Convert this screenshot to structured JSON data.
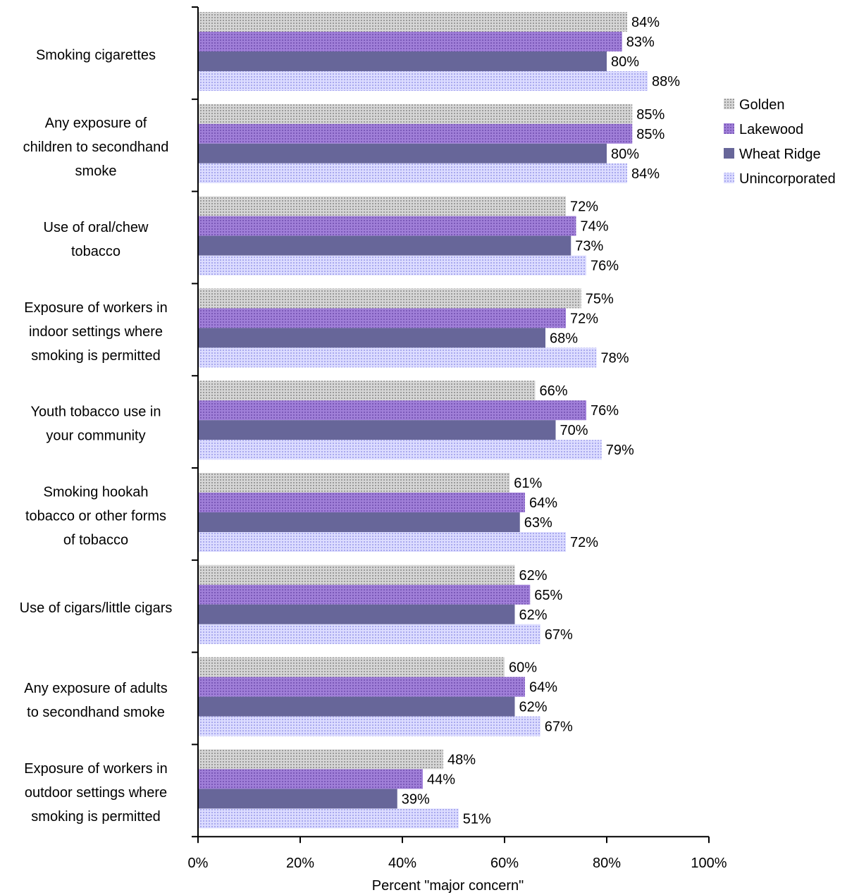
{
  "chart_data": {
    "type": "bar",
    "orientation": "horizontal",
    "title": "",
    "xlabel": "Percent \"major concern\"",
    "ylabel": "",
    "xlim": [
      0,
      100
    ],
    "x_ticks": [
      "0%",
      "20%",
      "40%",
      "60%",
      "80%",
      "100%"
    ],
    "grid": false,
    "legend_position": "right",
    "categories": [
      "Smoking cigarettes",
      "Any exposure of children to secondhand smoke",
      "Use of oral/chew tobacco",
      "Exposure of workers in indoor settings where smoking is permitted",
      "Youth tobacco use in your community",
      "Smoking hookah tobacco or other forms of tobacco",
      "Use of cigars/little cigars",
      "Any exposure of adults to secondhand smoke",
      "Exposure of workers in outdoor settings where smoking is permitted"
    ],
    "category_lines": [
      [
        "Smoking cigarettes"
      ],
      [
        "Any exposure of",
        "children to secondhand",
        "smoke"
      ],
      [
        "Use of oral/chew",
        "tobacco"
      ],
      [
        "Exposure of workers in",
        "indoor settings where",
        "smoking is permitted"
      ],
      [
        "Youth tobacco use in",
        "your community"
      ],
      [
        "Smoking hookah",
        "tobacco or other forms",
        "of tobacco"
      ],
      [
        "Use of cigars/little cigars"
      ],
      [
        "Any exposure of adults",
        "to secondhand smoke"
      ],
      [
        "Exposure of workers in",
        "outdoor settings where",
        "smoking is permitted"
      ]
    ],
    "series": [
      {
        "name": "Golden",
        "color": "#c8c8c8",
        "pattern": "dots-grey",
        "values": [
          84,
          85,
          72,
          75,
          66,
          61,
          62,
          60,
          48
        ],
        "labels": [
          "84%",
          "85%",
          "72%",
          "75%",
          "66%",
          "61%",
          "62%",
          "60%",
          "48%"
        ]
      },
      {
        "name": "Lakewood",
        "color": "#9575cd",
        "pattern": "dots-purple",
        "values": [
          83,
          85,
          74,
          72,
          76,
          64,
          65,
          64,
          44
        ],
        "labels": [
          "83%",
          "85%",
          "74%",
          "72%",
          "76%",
          "64%",
          "65%",
          "64%",
          "44%"
        ]
      },
      {
        "name": "Wheat Ridge",
        "color": "#676699",
        "pattern": "solid",
        "values": [
          80,
          80,
          73,
          68,
          70,
          63,
          62,
          62,
          39
        ],
        "labels": [
          "80%",
          "80%",
          "73%",
          "68%",
          "70%",
          "63%",
          "62%",
          "62%",
          "39%"
        ]
      },
      {
        "name": "Unincorporated",
        "color": "#ccccff",
        "pattern": "dots-lavender",
        "values": [
          88,
          84,
          76,
          78,
          79,
          72,
          67,
          67,
          51
        ],
        "labels": [
          "88%",
          "84%",
          "76%",
          "78%",
          "79%",
          "72%",
          "67%",
          "67%",
          "51%"
        ]
      }
    ]
  }
}
